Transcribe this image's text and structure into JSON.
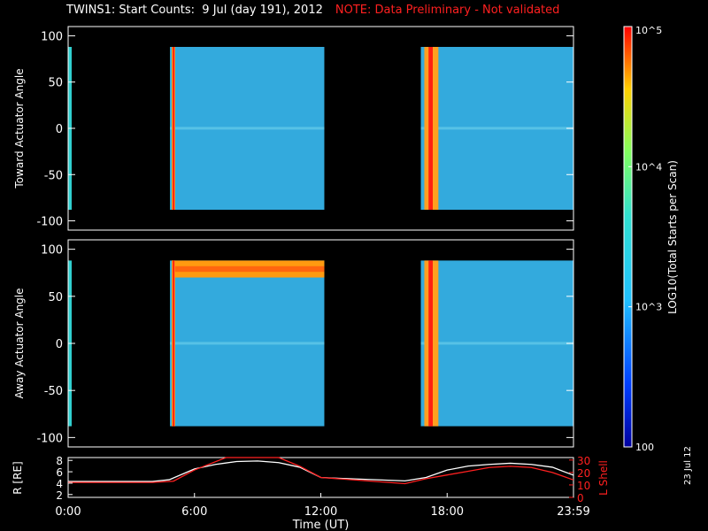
{
  "title": "TWINS1: Start Counts:  9 Jul (day 191), 2012",
  "note": "NOTE: Data Preliminary - Not validated",
  "date_stamp": "23 Jul 12",
  "colorbar": {
    "label": "LOG10(Total Starts per Scan)",
    "ticks": [
      "10^5",
      "10^4",
      "10^3",
      "100"
    ]
  },
  "colors": {
    "background": "#000000",
    "axes": "#ffffff",
    "note": "#ff2020",
    "lshell": "#ff2020",
    "base_fill": "#33aadd"
  },
  "chart_data": [
    {
      "type": "heatmap",
      "ylabel": "Toward Actuator Angle",
      "ylim": [
        -110,
        110
      ],
      "yticks": [
        "100",
        "50",
        "0",
        "-50",
        "-100"
      ],
      "xlim_hours": [
        0,
        24
      ],
      "data_blocks": [
        {
          "start": "04:50",
          "end": "12:10",
          "angle_range": [
            -88,
            88
          ],
          "level": 2.9
        },
        {
          "start": "16:45",
          "end": "23:59",
          "angle_range": [
            -88,
            88
          ],
          "level": 3.0
        }
      ],
      "high_bands": [
        {
          "start": "04:55",
          "end": "05:05",
          "level": 4.8
        },
        {
          "start": "16:55",
          "end": "17:35",
          "level": 4.6
        }
      ]
    },
    {
      "type": "heatmap",
      "ylabel": "Away Actuator Angle",
      "ylim": [
        -110,
        110
      ],
      "yticks": [
        "100",
        "50",
        "0",
        "-50",
        "-100"
      ],
      "xlim_hours": [
        0,
        24
      ],
      "data_blocks": [
        {
          "start": "04:50",
          "end": "12:10",
          "angle_range": [
            -88,
            88
          ],
          "level": 2.9
        },
        {
          "start": "16:45",
          "end": "23:59",
          "angle_range": [
            -88,
            88
          ],
          "level": 3.0
        }
      ],
      "high_bands": [
        {
          "start": "04:55",
          "end": "05:05",
          "level": 4.8
        },
        {
          "start": "16:55",
          "end": "17:35",
          "level": 4.6
        }
      ],
      "high_angle_band": {
        "start": "04:55",
        "end": "12:10",
        "angle_range": [
          70,
          88
        ],
        "level": 4.3
      }
    },
    {
      "type": "line",
      "xlabel": "Time (UT)",
      "xticks": [
        "0:00",
        "6:00",
        "12:00",
        "18:00",
        "23:59"
      ],
      "y_left_label": "R [RE]",
      "y_left_ticks": [
        "8",
        "6",
        "4",
        "2"
      ],
      "y_right_label": "L Shell",
      "y_right_ticks": [
        "30",
        "20",
        "10",
        "0"
      ],
      "series": [
        {
          "axis": "left",
          "color": "#ffffff",
          "x": [
            0,
            4,
            4.8,
            6,
            7,
            8,
            9,
            10,
            11,
            12,
            12.5,
            16,
            17,
            18,
            19,
            20,
            21,
            22,
            23,
            24
          ],
          "y": [
            4.3,
            4.3,
            4.6,
            6.5,
            7.3,
            7.8,
            7.9,
            7.6,
            6.8,
            5.0,
            4.9,
            4.4,
            5.0,
            6.3,
            7.0,
            7.3,
            7.5,
            7.3,
            6.8,
            5.4
          ]
        },
        {
          "axis": "right",
          "color": "#ff2020",
          "x": [
            0,
            4,
            5,
            6,
            7.5,
            10,
            11,
            12,
            16,
            17,
            18,
            19,
            20,
            21,
            22,
            23,
            24
          ],
          "y": [
            12,
            12,
            13,
            22,
            32,
            32,
            25,
            16,
            11,
            15,
            18,
            21,
            24,
            25,
            24,
            20,
            14
          ]
        }
      ]
    }
  ]
}
